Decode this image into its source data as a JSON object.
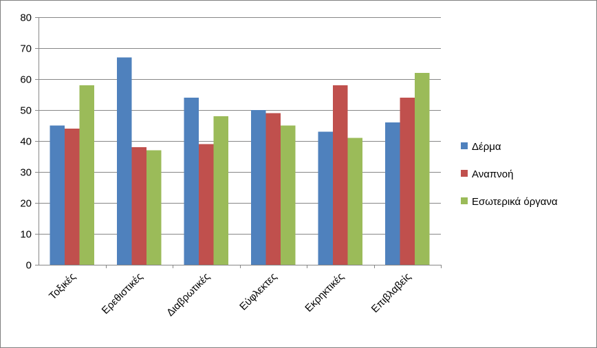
{
  "chart_data": {
    "type": "bar",
    "categories": [
      "Τοξικές",
      "Ερεθιστικές",
      "Διαβρωτικές",
      "Εύφλεκτες",
      "Εκρηκτικές",
      "Επιβλαβείς"
    ],
    "series": [
      {
        "name": "Δέρμα",
        "color": "#4f81bd",
        "values": [
          45,
          67,
          54,
          50,
          43,
          46
        ]
      },
      {
        "name": "Αναπνοή",
        "color": "#c0504d",
        "values": [
          44,
          38,
          39,
          49,
          58,
          54
        ]
      },
      {
        "name": "Εσωτερικά όργανα",
        "color": "#9bbb59",
        "values": [
          58,
          37,
          48,
          45,
          41,
          62
        ]
      }
    ],
    "ylim": [
      0,
      80
    ],
    "yticks": [
      0,
      10,
      20,
      30,
      40,
      50,
      60,
      70,
      80
    ],
    "grid": "horizontal",
    "legend": "right",
    "title": "",
    "xlabel": "",
    "ylabel": ""
  }
}
